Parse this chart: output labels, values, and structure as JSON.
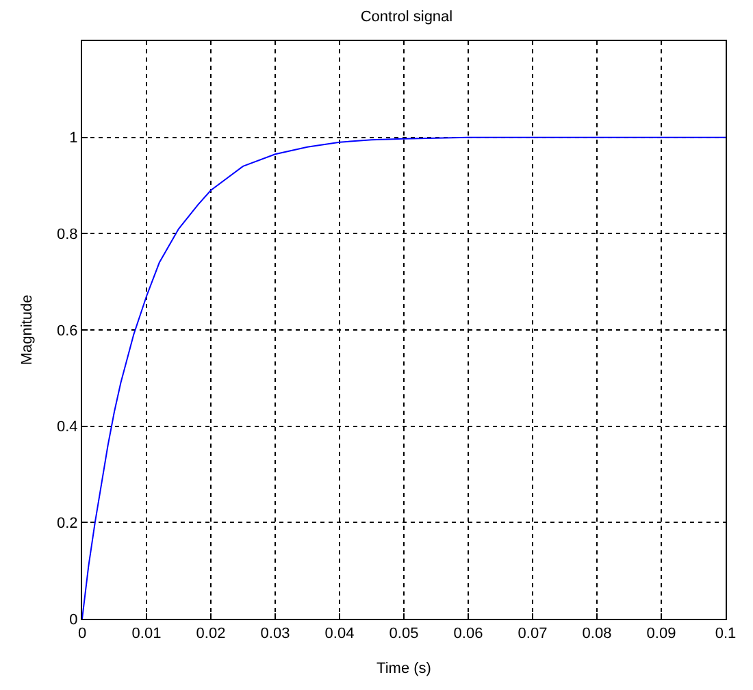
{
  "chart_data": {
    "type": "line",
    "title": "Control signal",
    "xlabel": "Time (s)",
    "ylabel": "Magnitude",
    "x": [
      0,
      0.001,
      0.002,
      0.003,
      0.004,
      0.005,
      0.006,
      0.008,
      0.01,
      0.012,
      0.015,
      0.018,
      0.02,
      0.025,
      0.03,
      0.035,
      0.04,
      0.045,
      0.05,
      0.06,
      0.07,
      0.08,
      0.09,
      0.1
    ],
    "series": [
      {
        "color": "#0000ff",
        "values": [
          0,
          0.11,
          0.2,
          0.28,
          0.36,
          0.43,
          0.49,
          0.59,
          0.67,
          0.74,
          0.81,
          0.86,
          0.89,
          0.94,
          0.965,
          0.98,
          0.99,
          0.995,
          0.997,
          1,
          1,
          1,
          1,
          1
        ]
      }
    ],
    "xlim": [
      0,
      0.1
    ],
    "xticks": [
      0,
      0.01,
      0.02,
      0.03,
      0.04,
      0.05,
      0.06,
      0.07,
      0.08,
      0.09,
      0.1
    ],
    "ylim": [
      0,
      1.2
    ],
    "yticks": [
      0,
      0.2,
      0.4,
      0.6,
      0.8,
      1
    ],
    "grid": true,
    "marker": "none",
    "line_style": "solid"
  }
}
